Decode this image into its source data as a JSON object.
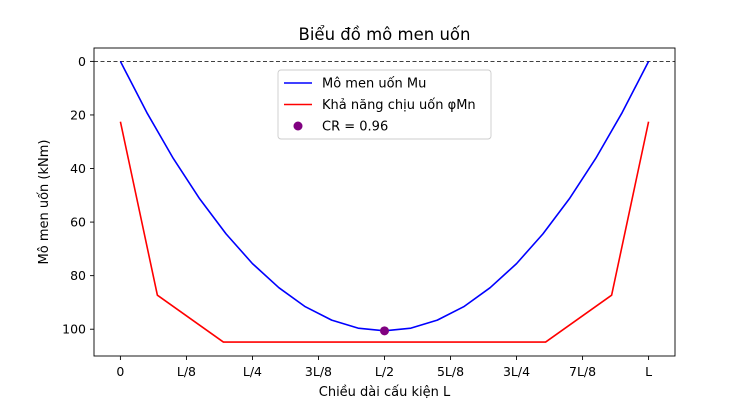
{
  "chart_data": {
    "type": "line",
    "title": "Biểu đồ mô men uốn",
    "xlabel": "Chiều dài cấu kiện L",
    "ylabel": "Mô men uốn (kNm)",
    "x_tick_labels": [
      "0",
      "L/8",
      "L/4",
      "3L/8",
      "L/2",
      "5L/8",
      "3L/4",
      "7L/8",
      "L"
    ],
    "xlim": [
      -0.05,
      1.05
    ],
    "ylim": [
      110,
      -5
    ],
    "y_inverted": true,
    "y_ticks": [
      0,
      20,
      40,
      60,
      80,
      100
    ],
    "reference_line": {
      "y": 0,
      "style": "dashed",
      "color": "#000000"
    },
    "legend_position": "top-center",
    "series": [
      {
        "name": "Mô men uốn Mu",
        "kind": "line",
        "color": "#0000ff",
        "x": [
          0,
          0.05,
          0.1,
          0.15,
          0.2,
          0.25,
          0.3,
          0.35,
          0.4,
          0.45,
          0.5,
          0.55,
          0.6,
          0.65,
          0.7,
          0.75,
          0.8,
          0.85,
          0.9,
          0.95,
          1.0
        ],
        "y": [
          0,
          19.1,
          36.2,
          51.3,
          64.4,
          75.5,
          84.5,
          91.6,
          96.6,
          99.6,
          100.6,
          99.6,
          96.6,
          91.6,
          84.5,
          75.5,
          64.4,
          51.3,
          36.2,
          19.1,
          0
        ]
      },
      {
        "name": "Khả năng chịu uốn φMn",
        "kind": "line",
        "color": "#ff0000",
        "x": [
          0,
          0.07,
          0.195,
          0.805,
          0.93,
          1.0
        ],
        "y": [
          22.5,
          87.3,
          104.8,
          104.8,
          87.3,
          22.5
        ]
      },
      {
        "name": "CR = 0.96",
        "kind": "scatter",
        "color": "#800080",
        "x": [
          0.5
        ],
        "y": [
          100.6
        ]
      }
    ]
  }
}
